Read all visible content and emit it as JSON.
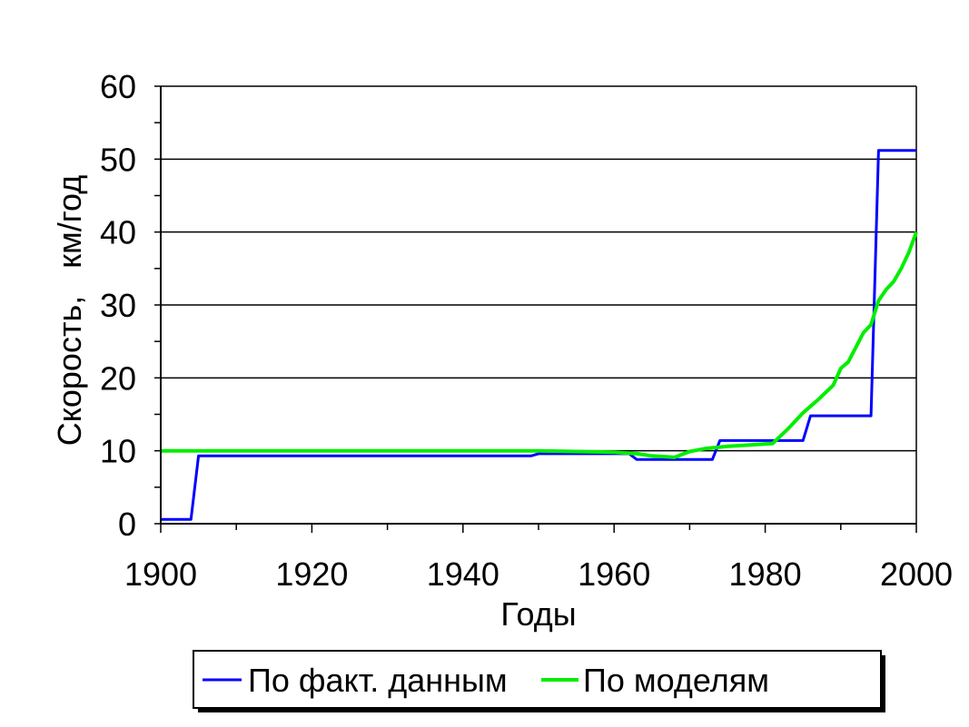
{
  "chart_data": {
    "type": "line",
    "title": "",
    "xlabel": "Годы",
    "ylabel": "Скорость,   км/год",
    "xlim": [
      1900,
      2000
    ],
    "ylim": [
      0,
      60
    ],
    "x_ticks": [
      1900,
      1920,
      1940,
      1960,
      1980,
      2000
    ],
    "x_tick_labels": [
      "1900",
      "1920",
      "1940",
      "1960",
      "1980",
      "2000"
    ],
    "y_ticks": [
      0,
      10,
      20,
      30,
      40,
      50,
      60
    ],
    "y_tick_labels": [
      "0",
      "10",
      "20",
      "30",
      "40",
      "50",
      "60"
    ],
    "grid": "horizontal",
    "legend_position": "bottom",
    "series": [
      {
        "name": "По факт. данным",
        "color": "#0000ff",
        "points": [
          [
            1900,
            0.6
          ],
          [
            1904,
            0.6
          ],
          [
            1905,
            9.3
          ],
          [
            1949,
            9.3
          ],
          [
            1950,
            9.6
          ],
          [
            1962,
            9.6
          ],
          [
            1963,
            8.8
          ],
          [
            1973,
            8.8
          ],
          [
            1974,
            11.4
          ],
          [
            1985,
            11.4
          ],
          [
            1986,
            14.8
          ],
          [
            1994,
            14.8
          ],
          [
            1995,
            51.2
          ],
          [
            2000,
            51.2
          ]
        ]
      },
      {
        "name": "По моделям",
        "color": "#00ee00",
        "points": [
          [
            1900,
            10
          ],
          [
            1950,
            10
          ],
          [
            1955,
            9.9
          ],
          [
            1960,
            9.8
          ],
          [
            1963,
            9.6
          ],
          [
            1965,
            9.3
          ],
          [
            1968,
            9.1
          ],
          [
            1970,
            9.9
          ],
          [
            1972,
            10.3
          ],
          [
            1975,
            10.6
          ],
          [
            1978,
            10.8
          ],
          [
            1981,
            11.0
          ],
          [
            1983,
            13.0
          ],
          [
            1985,
            15.2
          ],
          [
            1987,
            17.0
          ],
          [
            1989,
            19.0
          ],
          [
            1990,
            21.3
          ],
          [
            1991,
            22.2
          ],
          [
            1993,
            26.2
          ],
          [
            1994,
            27.3
          ],
          [
            1995,
            30.6
          ],
          [
            1996,
            32.1
          ],
          [
            1997,
            33.2
          ],
          [
            1998,
            35.0
          ],
          [
            1999,
            37.2
          ],
          [
            2000,
            40.0
          ]
        ]
      }
    ]
  }
}
